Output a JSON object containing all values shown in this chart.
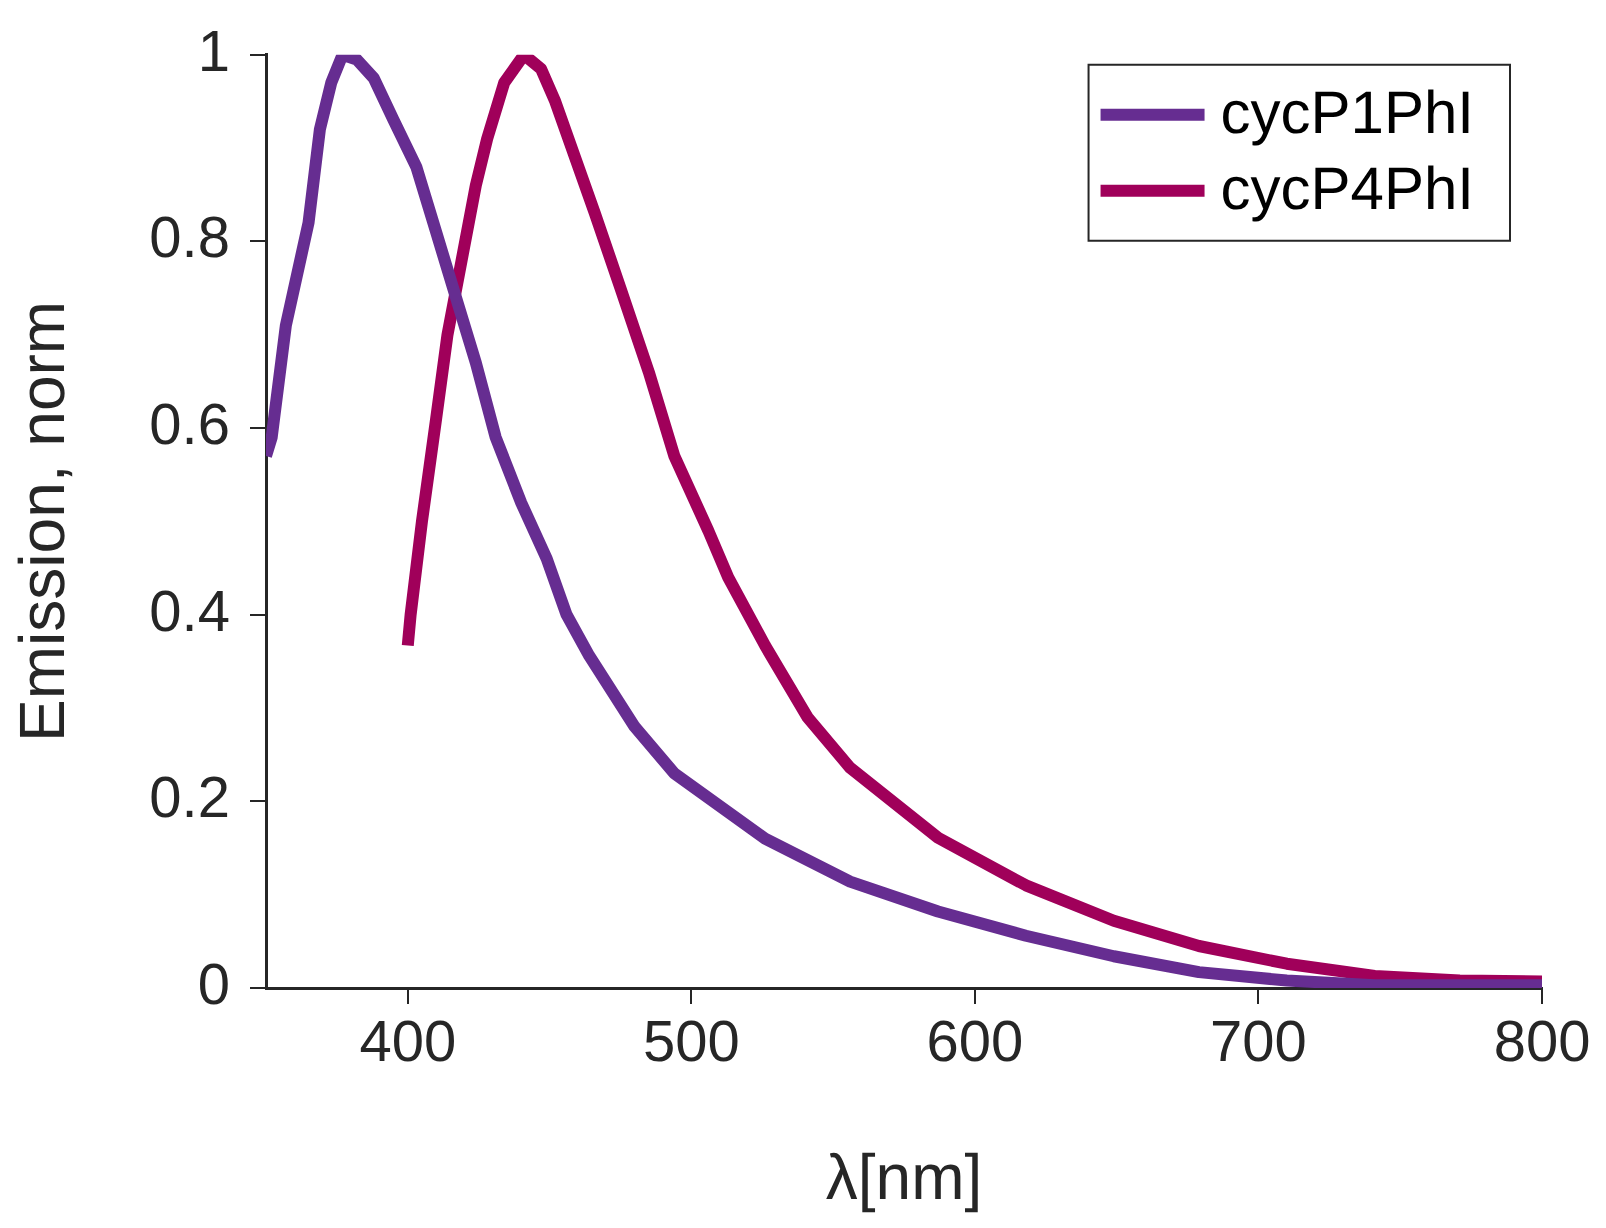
{
  "chart_data": {
    "type": "line",
    "xlabel": "λ[nm]",
    "ylabel": "Emission, norm",
    "xlim": [
      350,
      800
    ],
    "xticks": [
      400,
      500,
      600,
      700,
      800
    ],
    "ylim": [
      0,
      1
    ],
    "yticks": [
      0,
      0.2,
      0.4,
      0.6,
      0.8,
      1
    ],
    "grid": false,
    "legend": "top right",
    "marker": "none",
    "line_style": "solid",
    "series": [
      {
        "name": "cycP1PhI",
        "color": "#662d91",
        "x": [
          350,
          352,
          357,
          365,
          369,
          373,
          377,
          382,
          388,
          395,
          403,
          410,
          417,
          424,
          431,
          440,
          449,
          456,
          464,
          480,
          494,
          526,
          556,
          587,
          618,
          649,
          679,
          710,
          741,
          800
        ],
        "values": [
          0.57,
          0.59,
          0.71,
          0.82,
          0.92,
          0.97,
          1.0,
          0.995,
          0.975,
          0.93,
          0.88,
          0.81,
          0.74,
          0.67,
          0.59,
          0.52,
          0.46,
          0.4,
          0.356,
          0.28,
          0.23,
          0.16,
          0.114,
          0.082,
          0.056,
          0.034,
          0.017,
          0.008,
          0.003,
          0.003
        ]
      },
      {
        "name": "cycP4PhI",
        "color": "#a0005a",
        "x": [
          400,
          401,
          405,
          410,
          414,
          419,
          424,
          428,
          434,
          441,
          447,
          452,
          459,
          466,
          475,
          485,
          494,
          506,
          513,
          526,
          541,
          556,
          587,
          618,
          649,
          679,
          710,
          741,
          771,
          800
        ],
        "values": [
          0.367,
          0.4,
          0.5,
          0.61,
          0.7,
          0.78,
          0.86,
          0.91,
          0.97,
          1.0,
          0.985,
          0.95,
          0.89,
          0.83,
          0.75,
          0.66,
          0.57,
          0.49,
          0.44,
          0.367,
          0.29,
          0.236,
          0.161,
          0.11,
          0.072,
          0.045,
          0.026,
          0.013,
          0.008,
          0.007
        ]
      }
    ]
  }
}
